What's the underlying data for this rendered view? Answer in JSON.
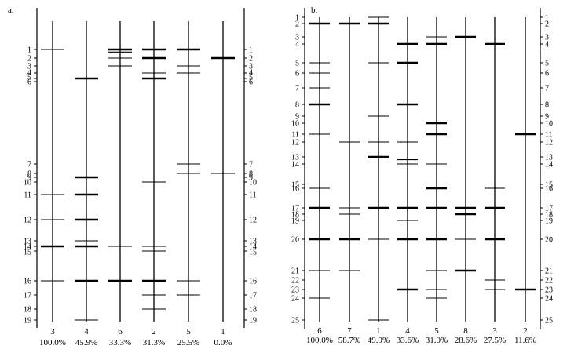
{
  "panels": [
    {
      "id": "a",
      "label": "a.",
      "band_count": 19,
      "lanes": [
        {
          "name": "3",
          "pct": "100.0%",
          "bands": [
            1,
            11,
            12,
            14,
            16
          ],
          "thick": [
            14
          ]
        },
        {
          "name": "4",
          "pct": "45.9%",
          "bands": [
            5,
            9,
            11,
            12,
            13,
            14,
            16,
            19
          ],
          "thick": [
            5,
            9,
            11,
            12,
            14,
            16
          ]
        },
        {
          "name": "6",
          "pct": "33.3%",
          "bands": [
            1,
            1.3,
            2,
            3,
            14,
            16
          ],
          "thick": [
            1,
            16
          ]
        },
        {
          "name": "2",
          "pct": "31.3%",
          "bands": [
            1,
            2,
            4,
            5,
            10,
            14,
            15,
            16,
            17,
            18
          ],
          "thick": [
            1,
            2,
            5,
            16
          ]
        },
        {
          "name": "5",
          "pct": "25.5%",
          "bands": [
            1,
            3,
            4,
            7,
            8,
            16,
            17
          ],
          "thick": [
            1
          ]
        },
        {
          "name": "1",
          "pct": "0.0%",
          "bands": [
            2,
            8
          ],
          "thick": [
            2
          ]
        }
      ],
      "left_ruler_labels": [
        "1",
        "2",
        "3",
        "4",
        "5",
        "6",
        "7",
        "8",
        "9",
        "10",
        "11",
        "12",
        "13",
        "14",
        "15",
        "16",
        "17",
        "18",
        "19"
      ],
      "right_ruler_labels": [
        "1",
        "2",
        "3",
        "4",
        "5",
        "6",
        "7",
        "8",
        "9",
        "10",
        "11",
        "12",
        "13",
        "14",
        "15",
        "16",
        "17",
        "18",
        "19"
      ]
    },
    {
      "id": "b",
      "label": "b.",
      "band_count": 25,
      "lanes": [
        {
          "name": "6",
          "pct": "100.0%",
          "bands": [
            2,
            5,
            6,
            7,
            8,
            11,
            16,
            17,
            20,
            21,
            24
          ],
          "thick": [
            2,
            8,
            17,
            20
          ]
        },
        {
          "name": "7",
          "pct": "58.7%",
          "bands": [
            2,
            12,
            17,
            18,
            20,
            21
          ],
          "thick": [
            2,
            20
          ]
        },
        {
          "name": "1",
          "pct": "49.9%",
          "bands": [
            1,
            2,
            5,
            9,
            12,
            13,
            17,
            20,
            25
          ],
          "thick": [
            2,
            13,
            17
          ]
        },
        {
          "name": "4",
          "pct": "33.6%",
          "bands": [
            4,
            5,
            8,
            12,
            13.4,
            14,
            17,
            19,
            20,
            23
          ],
          "thick": [
            4,
            5,
            8,
            17,
            20,
            23
          ]
        },
        {
          "name": "5",
          "pct": "31.0%",
          "bands": [
            3,
            4,
            10,
            11,
            14,
            16,
            17,
            20,
            21,
            23,
            24
          ],
          "thick": [
            4,
            10,
            11,
            16,
            17,
            20
          ]
        },
        {
          "name": "8",
          "pct": "28.6%",
          "bands": [
            3,
            17,
            18,
            20,
            21
          ],
          "thick": [
            3,
            17,
            18,
            21
          ]
        },
        {
          "name": "3",
          "pct": "27.5%",
          "bands": [
            4,
            16,
            17,
            20,
            22,
            23
          ],
          "thick": [
            4,
            17,
            20
          ]
        },
        {
          "name": "2",
          "pct": "11.6%",
          "bands": [
            11,
            23
          ],
          "thick": [
            11,
            23
          ]
        }
      ],
      "left_ruler_labels": [
        "1",
        "2",
        "3",
        "4",
        "5",
        "6",
        "7",
        "8",
        "9",
        "10",
        "11",
        "12",
        "13",
        "14",
        "15",
        "16",
        "17",
        "18",
        "19",
        "20",
        "21",
        "22",
        "23",
        "24",
        "25"
      ],
      "right_ruler_labels": [
        "1",
        "2",
        "3",
        "4",
        "5",
        "6",
        "7",
        "8",
        "9",
        "10",
        "11",
        "12",
        "13",
        "14",
        "15",
        "16",
        "17",
        "18",
        "19",
        "20",
        "21",
        "22",
        "23",
        "24",
        "25"
      ]
    }
  ]
}
